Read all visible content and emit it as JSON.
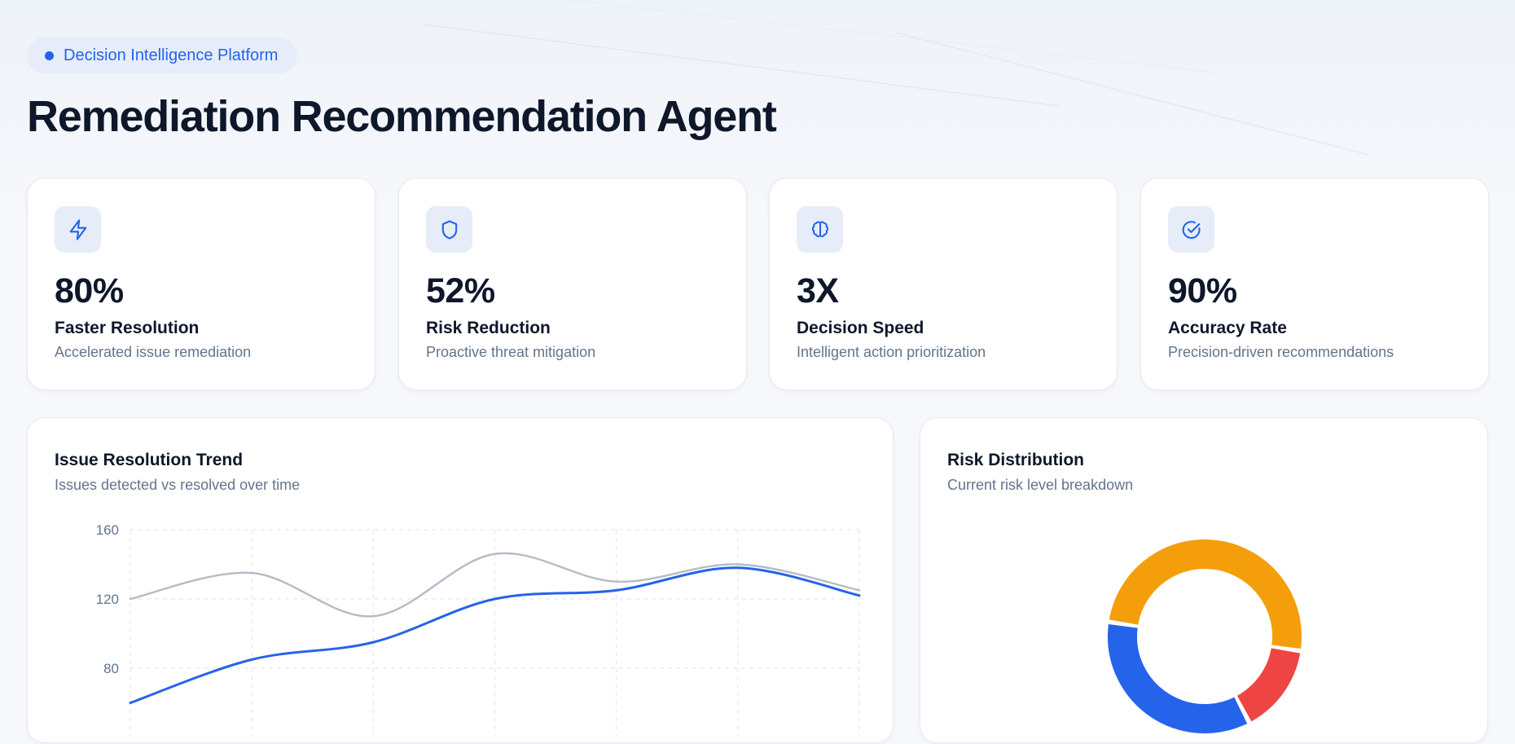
{
  "header": {
    "badge": "Decision Intelligence Platform",
    "title": "Remediation Recommendation Agent"
  },
  "stats": [
    {
      "icon": "lightning-icon",
      "value": "80%",
      "label": "Faster Resolution",
      "sub": "Accelerated issue remediation"
    },
    {
      "icon": "shield-icon",
      "value": "52%",
      "label": "Risk Reduction",
      "sub": "Proactive threat mitigation"
    },
    {
      "icon": "brain-icon",
      "value": "3X",
      "label": "Decision Speed",
      "sub": "Intelligent action prioritization"
    },
    {
      "icon": "check-circle-icon",
      "value": "90%",
      "label": "Accuracy Rate",
      "sub": "Precision-driven recommendations"
    }
  ],
  "colors": {
    "accent": "#2563eb",
    "detected": "#b5bcc7",
    "resolved": "#2563eb",
    "donut": [
      "#f59e0b",
      "#ef4444",
      "#2563eb"
    ]
  },
  "trend": {
    "title": "Issue Resolution Trend",
    "subtitle": "Issues detected vs resolved over time"
  },
  "risk": {
    "title": "Risk Distribution",
    "subtitle": "Current risk level breakdown"
  },
  "chart_data": [
    {
      "type": "line",
      "title": "Issue Resolution Trend",
      "y_ticks": [
        80,
        120,
        160
      ],
      "ylim": [
        60,
        160
      ],
      "grid": true,
      "series": [
        {
          "values": [
            120,
            135,
            110,
            146,
            130,
            140,
            125
          ]
        },
        {
          "values": [
            60,
            85,
            95,
            120,
            125,
            138,
            122
          ]
        }
      ]
    },
    {
      "type": "pie",
      "title": "Risk Distribution",
      "slices": [
        {
          "value": 15
        },
        {
          "value": 50
        },
        {
          "value": 35
        }
      ]
    }
  ]
}
